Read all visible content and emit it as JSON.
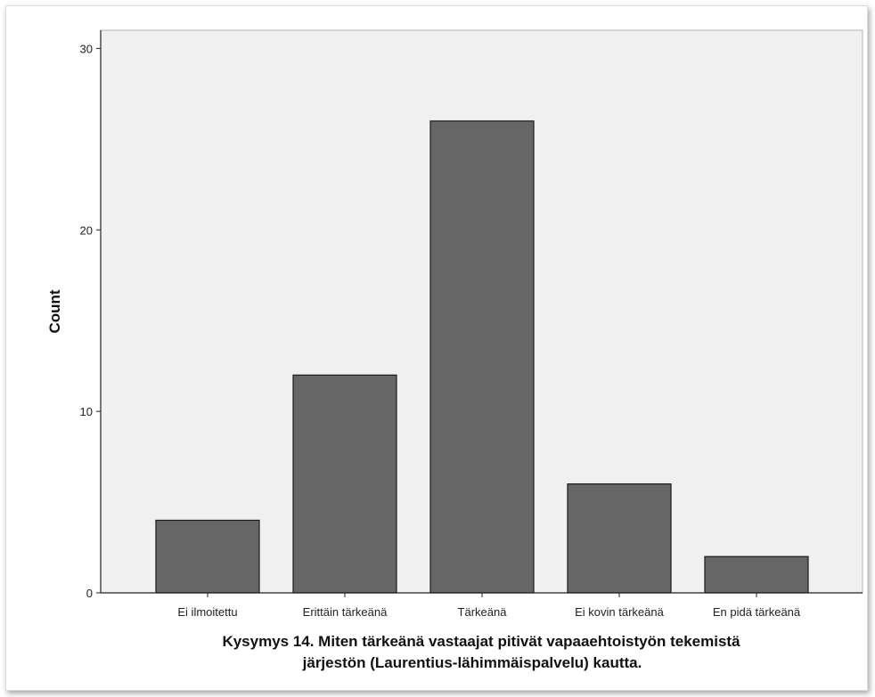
{
  "chart_data": {
    "type": "bar",
    "categories": [
      "Ei ilmoitettu",
      "Erittäin tärkeänä",
      "Tärkeänä",
      "Ei kovin tärkeänä",
      "En pidä tärkeänä"
    ],
    "values": [
      4,
      12,
      26,
      6,
      2
    ],
    "title": "",
    "xlabel_lines": [
      "Kysymys 14. Miten tärkeänä vastaajat pitivät vapaaehtoistyön tekemistä",
      "järjestön (Laurentius-lähimmäispalvelu) kautta."
    ],
    "ylabel": "Count",
    "ylim": [
      0,
      31
    ],
    "yticks": [
      0,
      10,
      20,
      30
    ],
    "grid": false,
    "colors": {
      "bar": "#666666",
      "bar_edge": "#1a1a1a",
      "plot_bg": "#f0f0f0"
    }
  }
}
